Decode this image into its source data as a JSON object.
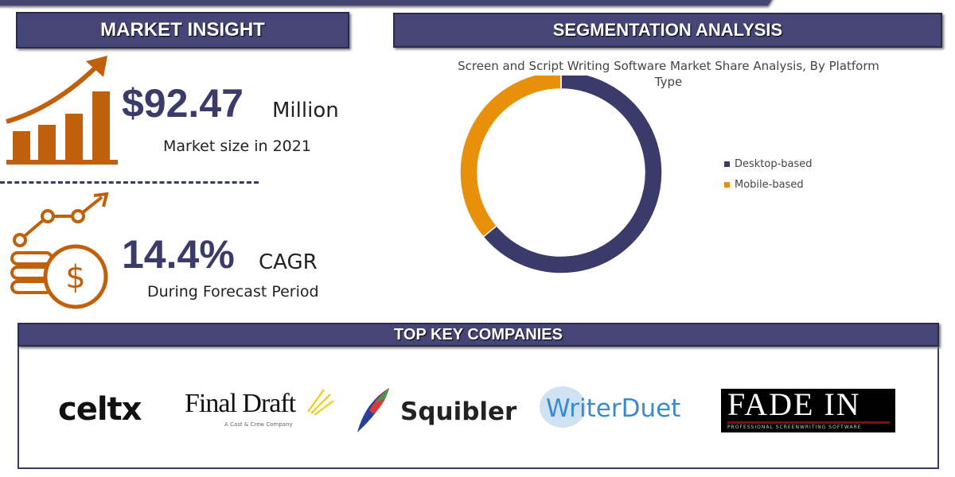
{
  "market_insight": {
    "header": "MARKET INSIGHT",
    "market_size": "$92.47",
    "market_size_unit": "Million",
    "market_size_label": "Market size in 2021",
    "cagr": "14.4%",
    "cagr_unit": "CAGR",
    "cagr_label": "During Forecast Period"
  },
  "segmentation": {
    "header": "SEGMENTATION ANALYSIS"
  },
  "chart_data": {
    "type": "pie",
    "donut": true,
    "title": "Screen and Script Writing Software Market Share Analysis, By Platform Type",
    "categories": [
      "Desktop-based",
      "Mobile-based"
    ],
    "values": [
      64,
      36
    ],
    "colors": [
      "#3b3b6b",
      "#e8900a"
    ],
    "legend": "right"
  },
  "companies": {
    "header": "TOP KEY COMPANIES",
    "logos": [
      "celtx",
      "Final Draft",
      "A Cast & Crew Company",
      "Squibler",
      "WriterDuet",
      "FADE IN",
      "PROFESSIONAL SCREENWRITING SOFTWARE"
    ]
  }
}
